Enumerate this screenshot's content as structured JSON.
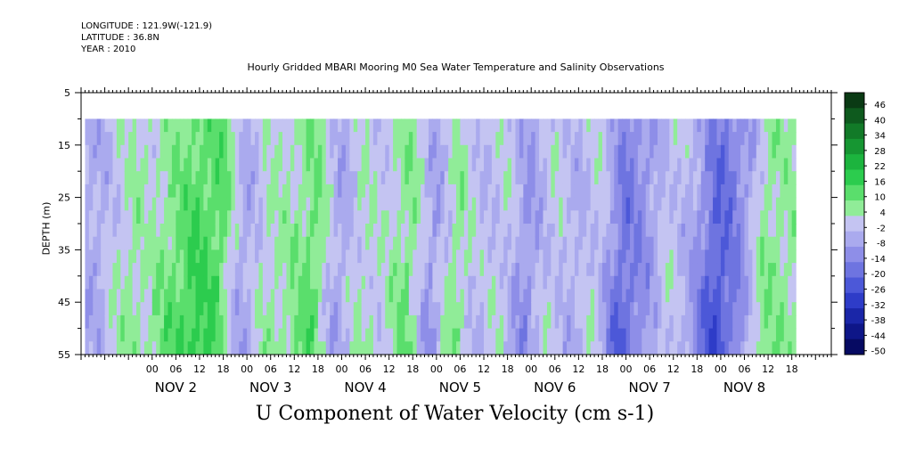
{
  "header": {
    "longitude": "LONGITUDE : 121.9W(-121.9)",
    "latitude": "LATITUDE : 36.8N",
    "year": "YEAR : 2010"
  },
  "chart_data": {
    "type": "heatmap",
    "title": "Hourly Gridded MBARI Mooring M0 Sea Water Temperature and Salinity Observations",
    "xlabel": "U Component of Water Velocity (cm s-1)",
    "ylabel": "DEPTH (m)",
    "y_ticks": [
      "5",
      "15",
      "25",
      "35",
      "45",
      "55"
    ],
    "ylim": [
      5,
      55
    ],
    "y_inverted": true,
    "data_depth_range": [
      10,
      55
    ],
    "x_hour_ticks": [
      "00",
      "06",
      "12",
      "18",
      "00",
      "06",
      "12",
      "18",
      "00",
      "06",
      "12",
      "18",
      "00",
      "06",
      "12",
      "18",
      "00",
      "06",
      "12",
      "18",
      "00",
      "06",
      "12",
      "18",
      "00",
      "06",
      "12",
      "18"
    ],
    "x_day_labels": [
      "NOV  2",
      "NOV  3",
      "NOV  4",
      "NOV  5",
      "NOV  6",
      "NOV  7",
      "NOV  8"
    ],
    "data_time_range_hours": [
      -17,
      163
    ],
    "colorbar_levels": [
      "46",
      "40",
      "34",
      "28",
      "22",
      "16",
      "10",
      "4",
      "-2",
      "-8",
      "-14",
      "-20",
      "-26",
      "-32",
      "-38",
      "-44",
      "-50"
    ],
    "colorbar_colors": [
      "#0a3a14",
      "#0e5a1e",
      "#127a28",
      "#169632",
      "#1cb43e",
      "#2ccc4e",
      "#5ade6c",
      "#90ec98",
      "#c4c4f2",
      "#aaaaee",
      "#8e8ee8",
      "#6e74e0",
      "#4c58d8",
      "#2e3cc8",
      "#1a26a8",
      "#0e1688",
      "#060a62"
    ],
    "description_profile_hourly_u": [
      {
        "t": -17,
        "u": -6
      },
      {
        "t": -12,
        "u": -4
      },
      {
        "t": -8,
        "u": 2
      },
      {
        "t": -4,
        "u": 6
      },
      {
        "t": 0,
        "u": 4
      },
      {
        "t": 6,
        "u": 10
      },
      {
        "t": 12,
        "u": 16
      },
      {
        "t": 18,
        "u": 14
      },
      {
        "t": 24,
        "u": -6
      },
      {
        "t": 30,
        "u": 4
      },
      {
        "t": 36,
        "u": 6
      },
      {
        "t": 42,
        "u": 12
      },
      {
        "t": 48,
        "u": -6
      },
      {
        "t": 54,
        "u": 4
      },
      {
        "t": 60,
        "u": 2
      },
      {
        "t": 66,
        "u": 10
      },
      {
        "t": 72,
        "u": -8
      },
      {
        "t": 78,
        "u": 8
      },
      {
        "t": 84,
        "u": -2
      },
      {
        "t": 90,
        "u": 2
      },
      {
        "t": 96,
        "u": -10
      },
      {
        "t": 102,
        "u": 2
      },
      {
        "t": 108,
        "u": -4
      },
      {
        "t": 114,
        "u": 2
      },
      {
        "t": 120,
        "u": -18
      },
      {
        "t": 126,
        "u": -10
      },
      {
        "t": 132,
        "u": 2
      },
      {
        "t": 138,
        "u": -6
      },
      {
        "t": 144,
        "u": -22
      },
      {
        "t": 150,
        "u": -12
      },
      {
        "t": 156,
        "u": 8
      },
      {
        "t": 163,
        "u": 6
      }
    ]
  }
}
